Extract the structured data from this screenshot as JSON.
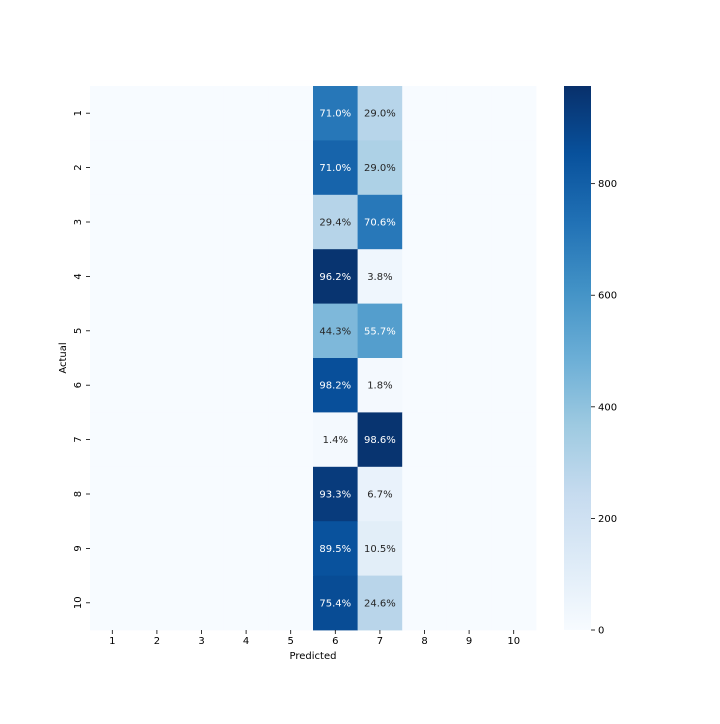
{
  "chart_data": {
    "type": "heatmap",
    "title": "",
    "xlabel": "Predicted",
    "ylabel": "Actual",
    "x_categories": [
      "1",
      "2",
      "3",
      "4",
      "5",
      "6",
      "7",
      "8",
      "9",
      "10"
    ],
    "y_categories": [
      "1",
      "2",
      "3",
      "4",
      "5",
      "6",
      "7",
      "8",
      "9",
      "10"
    ],
    "colormap": "Blues",
    "colorbar": {
      "min": 0,
      "max": 975,
      "ticks": [
        0,
        200,
        400,
        600,
        800
      ]
    },
    "values": [
      [
        0,
        0,
        0,
        0,
        0,
        710,
        290,
        0,
        0,
        0
      ],
      [
        0,
        0,
        0,
        0,
        0,
        780,
        319,
        0,
        0,
        0
      ],
      [
        0,
        0,
        0,
        0,
        0,
        294,
        706,
        0,
        0,
        0
      ],
      [
        0,
        0,
        0,
        0,
        0,
        962,
        38,
        0,
        0,
        0
      ],
      [
        0,
        0,
        0,
        0,
        0,
        443,
        557,
        0,
        0,
        0
      ],
      [
        0,
        0,
        0,
        0,
        0,
        859,
        16,
        0,
        0,
        0
      ],
      [
        0,
        0,
        0,
        0,
        0,
        14,
        962,
        0,
        0,
        0
      ],
      [
        0,
        0,
        0,
        0,
        0,
        933,
        67,
        0,
        0,
        0
      ],
      [
        0,
        0,
        0,
        0,
        0,
        850,
        100,
        0,
        0,
        0
      ],
      [
        0,
        0,
        0,
        0,
        0,
        870,
        284,
        0,
        0,
        0
      ]
    ],
    "annotations": [
      [
        "",
        "",
        "",
        "",
        "",
        "71.0%",
        "29.0%",
        "",
        "",
        ""
      ],
      [
        "",
        "",
        "",
        "",
        "",
        "71.0%",
        "29.0%",
        "",
        "",
        ""
      ],
      [
        "",
        "",
        "",
        "",
        "",
        "29.4%",
        "70.6%",
        "",
        "",
        ""
      ],
      [
        "",
        "",
        "",
        "",
        "",
        "96.2%",
        "3.8%",
        "",
        "",
        ""
      ],
      [
        "",
        "",
        "",
        "",
        "",
        "44.3%",
        "55.7%",
        "",
        "",
        ""
      ],
      [
        "",
        "",
        "",
        "",
        "",
        "98.2%",
        "1.8%",
        "",
        "",
        ""
      ],
      [
        "",
        "",
        "",
        "",
        "",
        "1.4%",
        "98.6%",
        "",
        "",
        ""
      ],
      [
        "",
        "",
        "",
        "",
        "",
        "93.3%",
        "6.7%",
        "",
        "",
        ""
      ],
      [
        "",
        "",
        "",
        "",
        "",
        "89.5%",
        "10.5%",
        "",
        "",
        ""
      ],
      [
        "",
        "",
        "",
        "",
        "",
        "75.4%",
        "24.6%",
        "",
        "",
        ""
      ]
    ]
  }
}
